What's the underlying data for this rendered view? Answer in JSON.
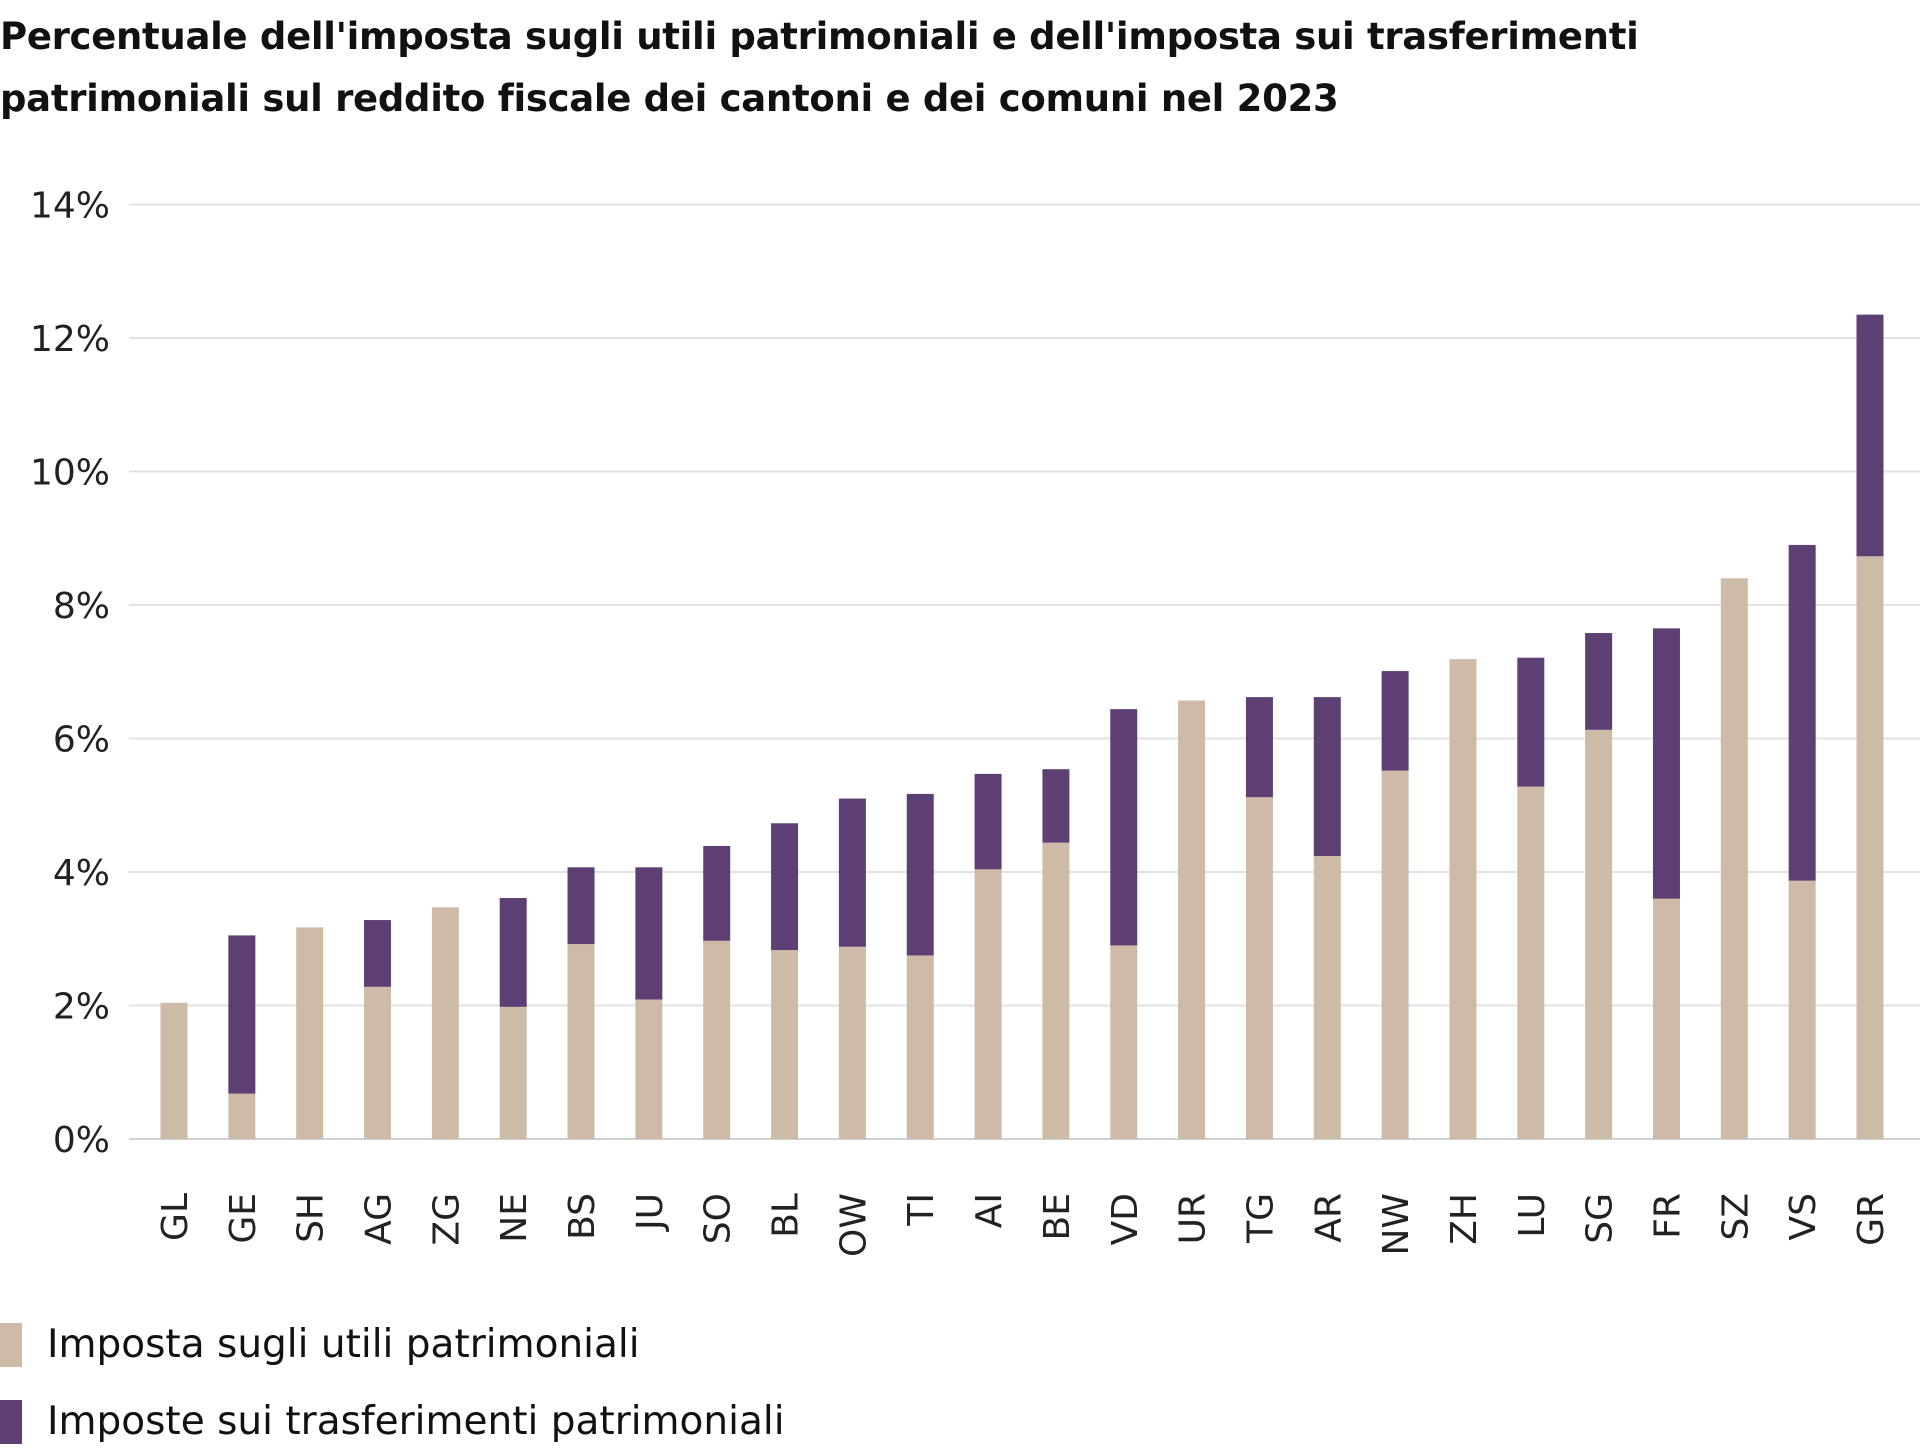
{
  "chart_data": {
    "type": "bar",
    "stacked": true,
    "title": "Percentuale dell'imposta sugli utili patrimoniali e dell'imposta sui trasferimenti patrimoniali sul reddito fiscale dei cantoni e dei comuni nel 2023",
    "xlabel": "",
    "ylabel": "",
    "ylim": [
      0,
      14
    ],
    "yticks": [
      "0%",
      "2%",
      "4%",
      "6%",
      "8%",
      "10%",
      "12%",
      "14%"
    ],
    "grid": true,
    "legend_placement": "bottom-left",
    "categories": [
      "GL",
      "GE",
      "SH",
      "AG",
      "ZG",
      "NE",
      "BS",
      "JU",
      "SO",
      "BL",
      "OW",
      "TI",
      "AI",
      "BE",
      "VD",
      "UR",
      "TG",
      "AR",
      "NW",
      "ZH",
      "LU",
      "SG",
      "FR",
      "SZ",
      "VS",
      "GR"
    ],
    "series": [
      {
        "name": "Imposta sugli utili patrimoniali",
        "color": "#cdbba8",
        "values": [
          2.04,
          0.68,
          3.17,
          2.28,
          3.47,
          1.98,
          2.92,
          2.09,
          2.97,
          2.83,
          2.88,
          2.75,
          4.04,
          4.44,
          2.9,
          6.57,
          5.12,
          4.24,
          5.52,
          7.19,
          5.28,
          6.13,
          3.6,
          8.4,
          3.87,
          8.73
        ]
      },
      {
        "name": "Imposte sui trasferimenti patrimoniali",
        "color": "#5e3f73",
        "values": [
          0,
          2.37,
          0,
          1.0,
          0,
          1.63,
          1.15,
          1.98,
          1.42,
          1.9,
          2.22,
          2.42,
          1.43,
          1.1,
          3.54,
          0,
          1.5,
          2.38,
          1.49,
          0,
          1.93,
          1.45,
          4.05,
          0,
          5.03,
          3.62
        ]
      }
    ]
  }
}
